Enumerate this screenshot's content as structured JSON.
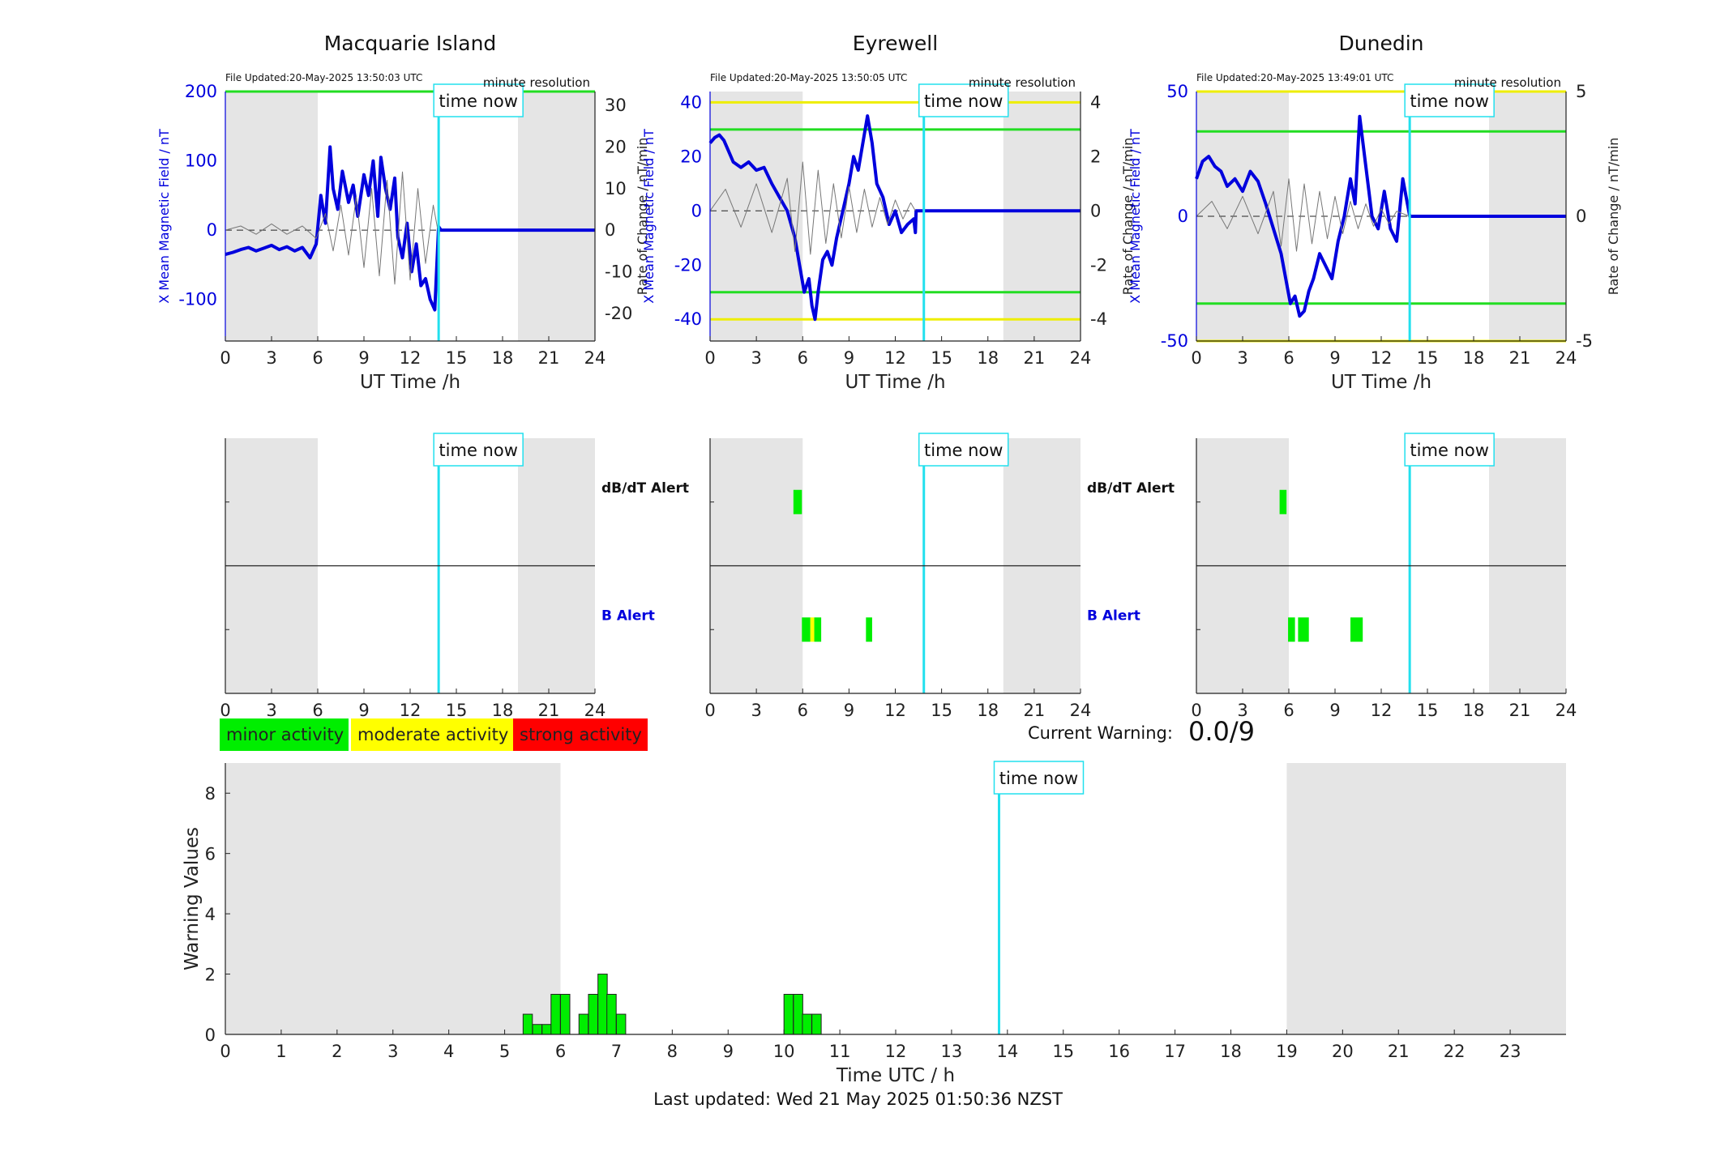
{
  "chart_data": [
    {
      "type": "line",
      "title": "Macquarie Island",
      "file_updated": "File Updated:20-May-2025 13:50:03 UTC",
      "resolution": "minute resolution",
      "xlabel": "UT Time /h",
      "ylabel_left": "X Mean Magnetic Field / nT",
      "ylabel_right": "Rate of Change / nT/min",
      "xlim": [
        0,
        24
      ],
      "ylim_left": [
        -160,
        200
      ],
      "ylim_right": [
        -26.67,
        33.33
      ],
      "xticks": [
        0,
        3,
        6,
        9,
        12,
        15,
        18,
        21,
        24
      ],
      "yticks_left": [
        -100,
        0,
        100,
        200
      ],
      "yticks_right": [
        -20,
        -10,
        0,
        10,
        20,
        30
      ],
      "time_now": 13.85,
      "time_now_label": "time now",
      "night_shading": [
        [
          0,
          6
        ],
        [
          19,
          24
        ]
      ],
      "thresholds": [
        {
          "value": 200,
          "color": "#22dd22"
        }
      ],
      "series": [
        {
          "axis": "left",
          "color": "#0000dd",
          "x": [
            0,
            0.5,
            1,
            1.5,
            2,
            2.5,
            3,
            3.5,
            4,
            4.5,
            5,
            5.5,
            5.9,
            6.2,
            6.5,
            6.8,
            7.0,
            7.3,
            7.6,
            8.0,
            8.3,
            8.6,
            9.0,
            9.3,
            9.6,
            9.9,
            10.1,
            10.4,
            10.7,
            11.0,
            11.2,
            11.5,
            11.8,
            12.1,
            12.4,
            12.7,
            13.0,
            13.3,
            13.6,
            13.85,
            14,
            24
          ],
          "y": [
            -35,
            -32,
            -28,
            -25,
            -30,
            -26,
            -22,
            -28,
            -24,
            -30,
            -25,
            -40,
            -20,
            50,
            10,
            120,
            60,
            30,
            85,
            40,
            65,
            20,
            80,
            50,
            100,
            20,
            105,
            60,
            30,
            75,
            -10,
            -40,
            10,
            -60,
            -20,
            -80,
            -70,
            -100,
            -115,
            5,
            0,
            0
          ]
        },
        {
          "axis": "right",
          "color": "#777777",
          "thin": true,
          "x": [
            0,
            1,
            2,
            3,
            4,
            5,
            5.9,
            6.5,
            7,
            7.5,
            8,
            8.5,
            9,
            9.5,
            10,
            10.5,
            11,
            11.5,
            12,
            12.5,
            13,
            13.5,
            13.8
          ],
          "y": [
            0,
            1,
            -1,
            1.5,
            -1,
            1,
            -2,
            4,
            -5,
            6,
            -6,
            8,
            -9,
            10,
            -11,
            12,
            -13,
            14,
            -12,
            10,
            -8,
            6,
            0
          ]
        }
      ]
    },
    {
      "type": "line",
      "title": "Eyrewell",
      "file_updated": "File Updated:20-May-2025 13:50:05 UTC",
      "resolution": "minute resolution",
      "xlabel": "UT Time /h",
      "ylabel_left": "X Mean Magnetic Field / nT",
      "ylabel_right": "Rate of Change / nT/min",
      "xlim": [
        0,
        24
      ],
      "ylim_left": [
        -48,
        44
      ],
      "ylim_right": [
        -4.8,
        4.4
      ],
      "xticks": [
        0,
        3,
        6,
        9,
        12,
        15,
        18,
        21,
        24
      ],
      "yticks_left": [
        -40,
        -20,
        0,
        20,
        40
      ],
      "yticks_right": [
        -4,
        -2,
        0,
        2,
        4
      ],
      "time_now": 13.85,
      "time_now_label": "time now",
      "night_shading": [
        [
          0,
          6
        ],
        [
          19,
          24
        ]
      ],
      "thresholds": [
        {
          "value": 40,
          "color": "#eeee00"
        },
        {
          "value": 30,
          "color": "#22dd22"
        },
        {
          "value": -30,
          "color": "#22dd22"
        },
        {
          "value": -40,
          "color": "#eeee00"
        }
      ],
      "series": [
        {
          "axis": "left",
          "color": "#0000dd",
          "x": [
            0,
            0.3,
            0.6,
            0.9,
            1.2,
            1.5,
            2.0,
            2.5,
            3.0,
            3.5,
            4.0,
            4.5,
            5.0,
            5.5,
            5.8,
            6.1,
            6.4,
            6.6,
            6.8,
            7.0,
            7.3,
            7.6,
            7.9,
            8.2,
            8.6,
            9.0,
            9.3,
            9.6,
            9.9,
            10.2,
            10.5,
            10.8,
            11.2,
            11.6,
            12.0,
            12.4,
            12.8,
            13.2,
            13.3,
            13.35,
            24
          ],
          "y": [
            25,
            27,
            28,
            26,
            22,
            18,
            16,
            18,
            15,
            16,
            10,
            5,
            0,
            -10,
            -20,
            -30,
            -25,
            -35,
            -40,
            -30,
            -18,
            -15,
            -20,
            -10,
            0,
            10,
            20,
            15,
            25,
            35,
            25,
            10,
            5,
            -5,
            0,
            -8,
            -5,
            -3,
            -8,
            0,
            0
          ]
        },
        {
          "axis": "right",
          "color": "#777777",
          "thin": true,
          "x": [
            0,
            1,
            2,
            3,
            4,
            5,
            5.5,
            6,
            6.5,
            7,
            7.5,
            8,
            8.5,
            9,
            9.5,
            10,
            10.5,
            11,
            11.5,
            12,
            12.5,
            13,
            13.3
          ],
          "y": [
            0,
            0.8,
            -0.6,
            1.0,
            -0.8,
            1.2,
            -1.5,
            1.8,
            -1.6,
            1.5,
            -1.2,
            1.0,
            -1.0,
            0.9,
            -0.8,
            0.8,
            -0.6,
            0.5,
            -0.5,
            0.4,
            -0.3,
            0.3,
            0
          ]
        }
      ]
    },
    {
      "type": "line",
      "title": "Dunedin",
      "file_updated": "File Updated:20-May-2025 13:49:01 UTC",
      "resolution": "minute resolution",
      "xlabel": "UT Time /h",
      "ylabel_left": "X Mean Magnetic Field / nT",
      "ylabel_right": "Rate of Change / nT/min",
      "xlim": [
        0,
        24
      ],
      "ylim_left": [
        -50,
        50
      ],
      "ylim_right": [
        -5,
        5
      ],
      "xticks": [
        0,
        3,
        6,
        9,
        12,
        15,
        18,
        21,
        24
      ],
      "yticks_left": [
        -50,
        0,
        50
      ],
      "yticks_right": [
        -5,
        0,
        5
      ],
      "time_now": 13.85,
      "time_now_label": "time now",
      "night_shading": [
        [
          0,
          6
        ],
        [
          19,
          24
        ]
      ],
      "thresholds": [
        {
          "value": 50,
          "color": "#eeee00"
        },
        {
          "value": 34,
          "color": "#22dd22"
        },
        {
          "value": -35,
          "color": "#22dd22"
        },
        {
          "value": -50,
          "color": "#eeee00"
        }
      ],
      "series": [
        {
          "axis": "left",
          "color": "#0000dd",
          "x": [
            0,
            0.4,
            0.8,
            1.2,
            1.6,
            2.0,
            2.5,
            3.0,
            3.5,
            4.0,
            4.5,
            5.0,
            5.5,
            5.8,
            6.1,
            6.4,
            6.7,
            7.0,
            7.3,
            7.6,
            8.0,
            8.4,
            8.8,
            9.2,
            9.6,
            10.0,
            10.3,
            10.6,
            11.0,
            11.4,
            11.8,
            12.2,
            12.6,
            13.0,
            13.4,
            13.7,
            13.85,
            24
          ],
          "y": [
            15,
            22,
            24,
            20,
            18,
            12,
            15,
            10,
            18,
            14,
            5,
            -5,
            -15,
            -25,
            -35,
            -32,
            -40,
            -38,
            -30,
            -25,
            -15,
            -20,
            -25,
            -10,
            0,
            15,
            5,
            40,
            20,
            0,
            -5,
            10,
            -5,
            -10,
            15,
            5,
            0,
            0
          ]
        },
        {
          "axis": "right",
          "color": "#777777",
          "thin": true,
          "x": [
            0,
            1,
            2,
            3,
            4,
            5,
            5.5,
            6,
            6.5,
            7,
            7.5,
            8,
            8.5,
            9,
            9.5,
            10,
            10.5,
            11,
            11.5,
            12,
            12.5,
            13,
            13.85
          ],
          "y": [
            0,
            0.6,
            -0.5,
            0.8,
            -0.7,
            1.0,
            -1.2,
            1.5,
            -1.4,
            1.3,
            -1.1,
            1.0,
            -0.9,
            0.8,
            -0.7,
            0.6,
            -0.5,
            0.5,
            -0.4,
            0.3,
            -0.3,
            0.2,
            0
          ]
        }
      ]
    },
    {
      "type": "bar",
      "station": "Macquarie Island",
      "xlim": [
        0,
        24
      ],
      "xticks": [
        0,
        3,
        6,
        9,
        12,
        15,
        18,
        21,
        24
      ],
      "time_now": 13.85,
      "time_now_label": "time now",
      "night_shading": [
        [
          0,
          6
        ],
        [
          19,
          24
        ]
      ],
      "row_labels": [
        "dB/dT Alert",
        "B Alert"
      ],
      "row_label_colors": [
        "#111111",
        "#0000dd"
      ],
      "alerts": []
    },
    {
      "type": "bar",
      "station": "Eyrewell",
      "xlim": [
        0,
        24
      ],
      "xticks": [
        0,
        3,
        6,
        9,
        12,
        15,
        18,
        21,
        24
      ],
      "time_now": 13.85,
      "time_now_label": "time now",
      "night_shading": [
        [
          0,
          6
        ],
        [
          19,
          24
        ]
      ],
      "row_labels": [
        "dB/dT Alert",
        "B Alert"
      ],
      "row_label_colors": [
        "#111111",
        "#0000dd"
      ],
      "alerts": [
        {
          "row": 0,
          "start": 5.4,
          "end": 5.95,
          "level": "minor"
        },
        {
          "row": 1,
          "start": 5.95,
          "end": 6.5,
          "level": "minor"
        },
        {
          "row": 1,
          "start": 6.5,
          "end": 6.75,
          "level": "moderate"
        },
        {
          "row": 1,
          "start": 6.75,
          "end": 7.2,
          "level": "minor"
        },
        {
          "row": 1,
          "start": 10.1,
          "end": 10.5,
          "level": "minor"
        }
      ]
    },
    {
      "type": "bar",
      "station": "Dunedin",
      "xlim": [
        0,
        24
      ],
      "xticks": [
        0,
        3,
        6,
        9,
        12,
        15,
        18,
        21,
        24
      ],
      "time_now": 13.85,
      "time_now_label": "time now",
      "night_shading": [
        [
          0,
          6
        ],
        [
          19,
          24
        ]
      ],
      "row_labels": [
        "dB/dT Alert",
        "B Alert"
      ],
      "row_label_colors": [
        "#111111",
        "#0000dd"
      ],
      "alerts": [
        {
          "row": 0,
          "start": 5.4,
          "end": 5.85,
          "level": "minor"
        },
        {
          "row": 1,
          "start": 5.95,
          "end": 6.4,
          "level": "minor"
        },
        {
          "row": 1,
          "start": 6.6,
          "end": 7.3,
          "level": "minor"
        },
        {
          "row": 1,
          "start": 10.0,
          "end": 10.8,
          "level": "minor"
        }
      ]
    },
    {
      "type": "bar",
      "title": "",
      "xlabel": "Time UTC / h",
      "ylabel": "Warning Values",
      "xlim": [
        0,
        24
      ],
      "ylim": [
        0,
        9
      ],
      "xticks": [
        0,
        1,
        2,
        3,
        4,
        5,
        6,
        7,
        8,
        9,
        10,
        11,
        12,
        13,
        14,
        15,
        16,
        17,
        18,
        19,
        20,
        21,
        22,
        23
      ],
      "yticks": [
        0,
        2,
        4,
        6,
        8
      ],
      "time_now": 13.85,
      "time_now_label": "time now",
      "night_shading": [
        [
          0,
          6
        ],
        [
          19,
          24
        ]
      ],
      "bar_width": 0.1667,
      "color": "#00ee00",
      "x": [
        5.33,
        5.5,
        5.67,
        5.83,
        6.0,
        6.33,
        6.5,
        6.67,
        6.83,
        7.0,
        10.0,
        10.17,
        10.33,
        10.5
      ],
      "values": [
        0.67,
        0.33,
        0.33,
        1.33,
        1.33,
        0.67,
        1.33,
        2.0,
        1.33,
        0.67,
        1.33,
        1.33,
        0.67,
        0.67
      ]
    }
  ],
  "legend": [
    {
      "label": "minor activity",
      "color": "#00ee00"
    },
    {
      "label": "moderate activity",
      "color": "#ffff00"
    },
    {
      "label": "strong activity",
      "color": "#ff0000"
    }
  ],
  "current_warning": {
    "label": "Current Warning:",
    "value": "0.0/9"
  },
  "footer": "Last updated: Wed 21 May 2025 01:50:36 NZST"
}
